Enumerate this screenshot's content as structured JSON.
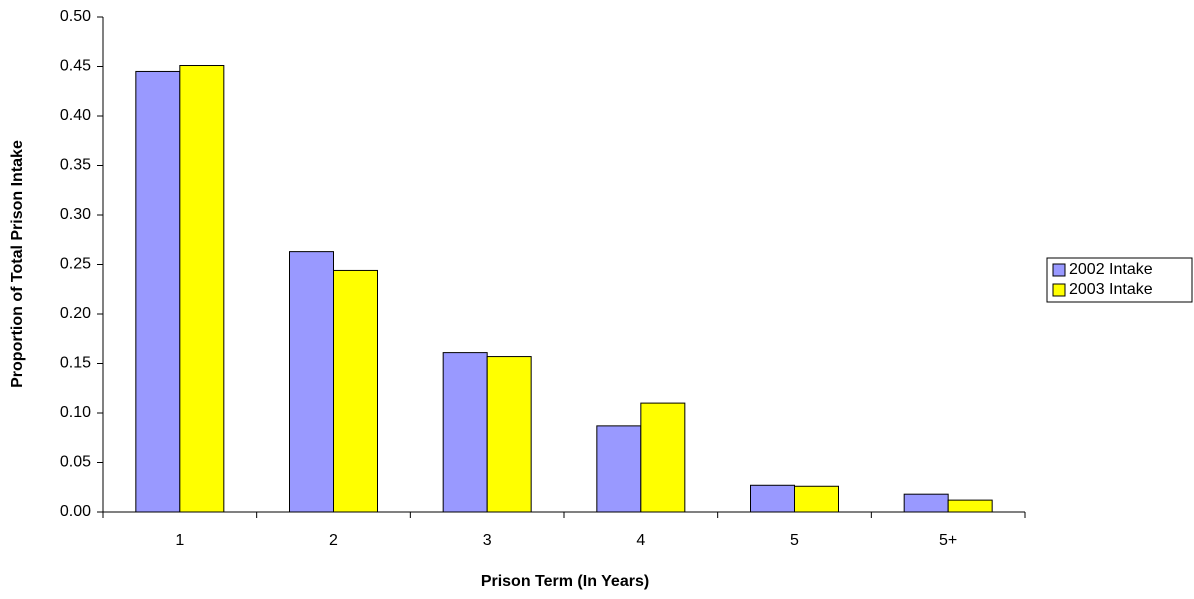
{
  "chart_data": {
    "type": "bar",
    "x_label": "Prison Term (In Years)",
    "y_label": "Proportion of Total Prison Intake",
    "categories": [
      "1",
      "2",
      "3",
      "4",
      "5",
      "5+"
    ],
    "series": [
      {
        "name": "2002 Intake",
        "color": "#9999ff",
        "values": [
          0.445,
          0.263,
          0.161,
          0.087,
          0.027,
          0.018
        ]
      },
      {
        "name": "2003 Intake",
        "color": "#ffff00",
        "values": [
          0.451,
          0.244,
          0.157,
          0.11,
          0.026,
          0.012
        ]
      }
    ],
    "ylim": [
      0,
      0.5
    ],
    "yticks": [
      {
        "value": 0,
        "label": "0.00"
      },
      {
        "value": 0.05,
        "label": "0.05"
      },
      {
        "value": 0.1,
        "label": "0.10"
      },
      {
        "value": 0.15,
        "label": "0.15"
      },
      {
        "value": 0.2,
        "label": "0.20"
      },
      {
        "value": 0.25,
        "label": "0.25"
      },
      {
        "value": 0.3,
        "label": "0.30"
      },
      {
        "value": 0.35,
        "label": "0.35"
      },
      {
        "value": 0.4,
        "label": "0.40"
      },
      {
        "value": 0.45,
        "label": "0.45"
      },
      {
        "value": 0.5,
        "label": "0.50"
      }
    ],
    "grid": false,
    "legend": "right"
  }
}
